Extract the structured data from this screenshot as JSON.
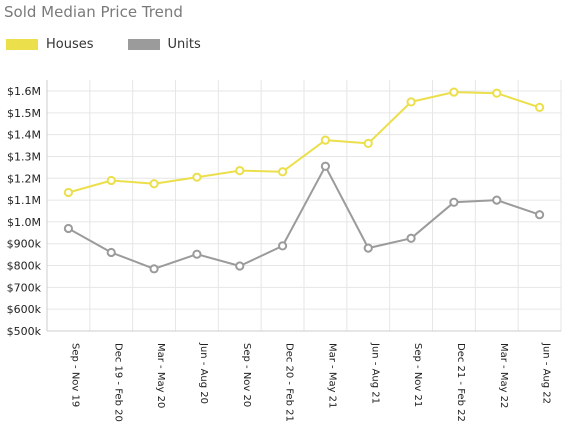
{
  "chart_data": {
    "type": "line",
    "title": "Sold Median Price Trend",
    "xlabel": "",
    "ylabel": "",
    "categories": [
      "Sep - Nov 19",
      "Dec 19 - Feb 20",
      "Mar - May 20",
      "Jun - Aug 20",
      "Sep - Nov 20",
      "Dec 20 - Feb 21",
      "Mar - May 21",
      "Jun - Aug 21",
      "Sep - Nov 21",
      "Dec 21 - Feb 22",
      "Mar - May 22",
      "Jun - Aug 22"
    ],
    "series": [
      {
        "name": "Houses",
        "color": "#ecdf4c",
        "values": [
          1135000,
          1190000,
          1175000,
          1205000,
          1235000,
          1230000,
          1375000,
          1360000,
          1550000,
          1595000,
          1590000,
          1525000
        ]
      },
      {
        "name": "Units",
        "color": "#9b9b9b",
        "values": [
          970000,
          860000,
          785000,
          852000,
          798000,
          890000,
          1255000,
          880000,
          925000,
          1090000,
          1100000,
          1033000
        ]
      }
    ],
    "ylim": [
      500000,
      1600000
    ],
    "yticks": [
      500000,
      600000,
      700000,
      800000,
      900000,
      1000000,
      1100000,
      1200000,
      1300000,
      1400000,
      1500000,
      1600000
    ],
    "ytick_labels": [
      "$500k",
      "$600k",
      "$700k",
      "$800k",
      "$900k",
      "$1.0M",
      "$1.1M",
      "$1.2M",
      "$1.3M",
      "$1.4M",
      "$1.5M",
      "$1.6M"
    ],
    "grid": true,
    "legend_position": "top-left"
  }
}
